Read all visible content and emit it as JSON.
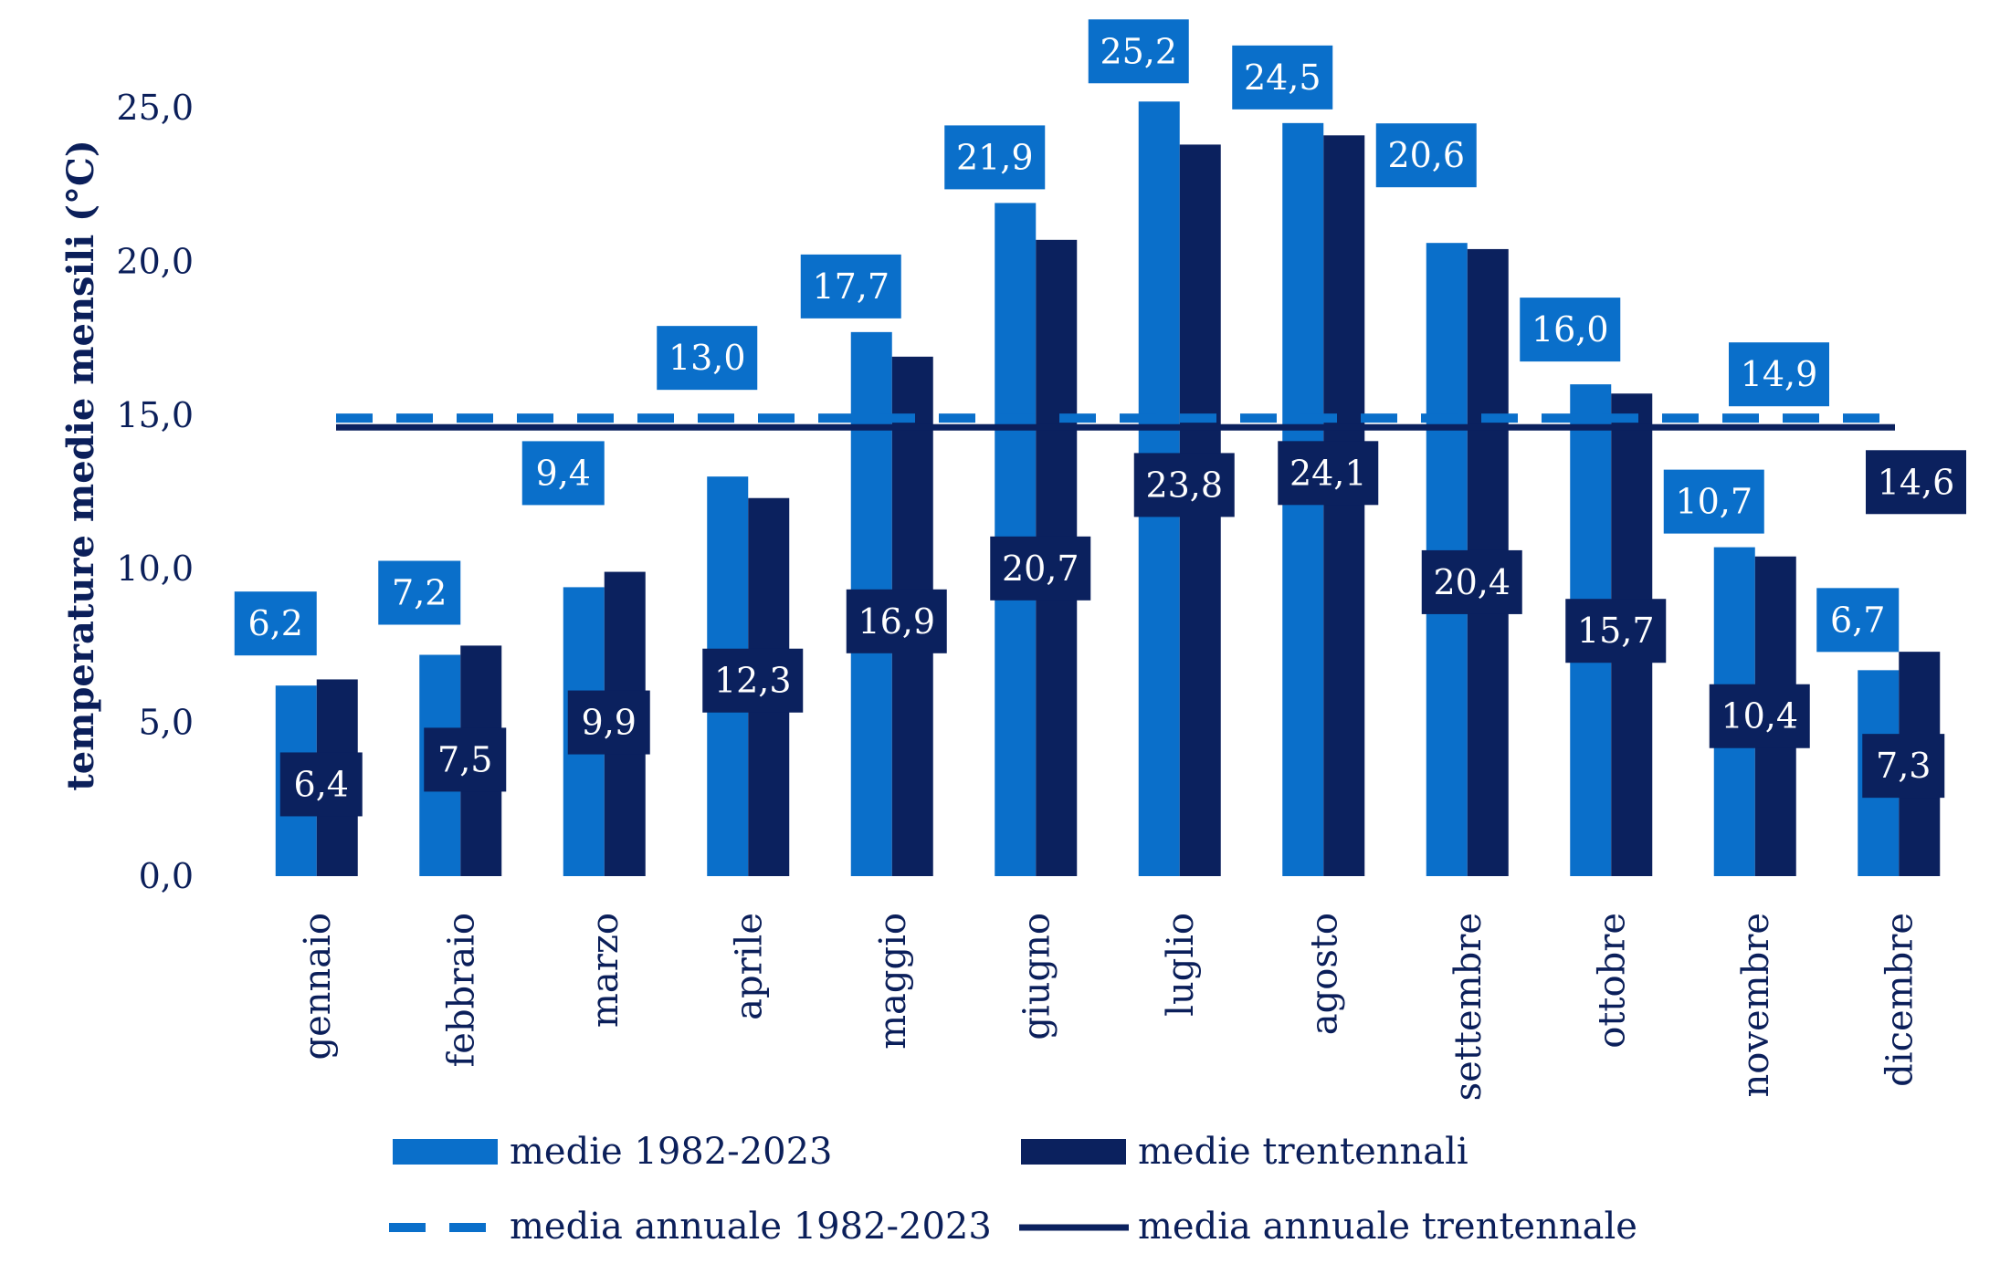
{
  "chart_data": {
    "type": "bar",
    "title": "",
    "xlabel": "",
    "ylabel": "temperature medie mensili (°C)",
    "ylim": [
      0,
      25
    ],
    "yticks": [
      "0,0",
      "5,0",
      "10,0",
      "15,0",
      "20,0",
      "25,0"
    ],
    "categories": [
      "gennaio",
      "febbraio",
      "marzo",
      "aprile",
      "maggio",
      "giugno",
      "luglio",
      "agosto",
      "settembre",
      "ottobre",
      "novembre",
      "dicembre"
    ],
    "series": [
      {
        "name": "medie 1982-2023",
        "color": "#0a6fca",
        "values": [
          6.2,
          7.2,
          9.4,
          13.0,
          17.7,
          21.9,
          25.2,
          24.5,
          20.6,
          16.0,
          10.7,
          6.7
        ],
        "labels": [
          "6,2",
          "7,2",
          "9,4",
          "13,0",
          "17,7",
          "21,9",
          "25,2",
          "24,5",
          "20,6",
          "16,0",
          "10,7",
          "6,7"
        ]
      },
      {
        "name": "medie trentennali",
        "color": "#0b215e",
        "values": [
          6.4,
          7.5,
          9.9,
          12.3,
          16.9,
          20.7,
          23.8,
          24.1,
          20.4,
          15.7,
          10.4,
          7.3
        ],
        "labels": [
          "6,4",
          "7,5",
          "9,9",
          "12,3",
          "16,9",
          "20,7",
          "23,8",
          "24,1",
          "20,4",
          "15,7",
          "10,4",
          "7,3"
        ]
      }
    ],
    "lines": [
      {
        "name": "media annuale 1982-2023",
        "value": 14.9,
        "label": "14,9",
        "style": "dashed",
        "color": "#0a6fca"
      },
      {
        "name": "media annuale trentennale",
        "value": 14.6,
        "label": "14,6",
        "style": "solid",
        "color": "#0b215e"
      }
    ],
    "grid": false,
    "legend_position": "bottom"
  }
}
